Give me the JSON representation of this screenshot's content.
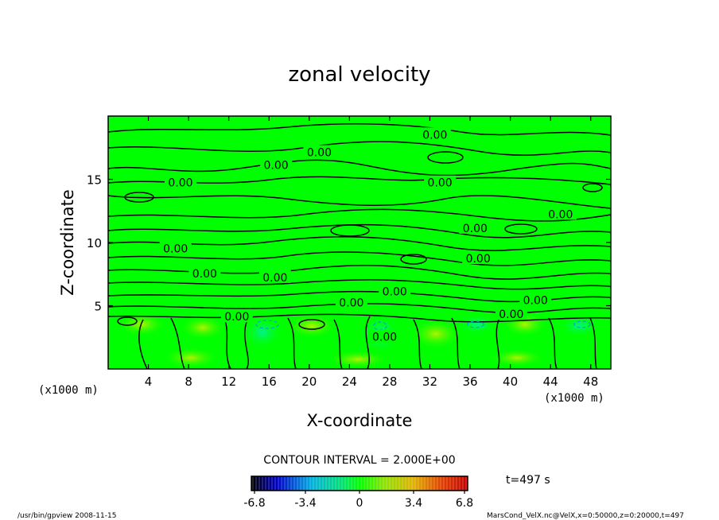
{
  "chart_data": {
    "type": "contour",
    "title": "zonal velocity",
    "xlabel": "X-coordinate",
    "ylabel": "Z-coordinate",
    "xunit": "(x1000 m)",
    "yunit": "(x1000 m)",
    "xlim": [
      0,
      50
    ],
    "ylim": [
      0,
      20
    ],
    "xticks": [
      "4",
      "8",
      "12",
      "16",
      "20",
      "24",
      "28",
      "32",
      "36",
      "40",
      "44",
      "48"
    ],
    "xtick_values": [
      4,
      8,
      12,
      16,
      20,
      24,
      28,
      32,
      36,
      40,
      44,
      48
    ],
    "yticks": [
      "5",
      "10",
      "15"
    ],
    "ytick_values": [
      5,
      10,
      15
    ],
    "contour_interval_text": "CONTOUR INTERVAL = 2.000E+00",
    "contour_label": "0.00",
    "contour_labels": [
      {
        "text": "0.00",
        "x": 32.5,
        "z": 18.6
      },
      {
        "text": "0.00",
        "x": 21.0,
        "z": 17.2
      },
      {
        "text": "0.00",
        "x": 16.7,
        "z": 16.2
      },
      {
        "text": "0.00",
        "x": 7.2,
        "z": 14.8
      },
      {
        "text": "0.00",
        "x": 33.0,
        "z": 14.8
      },
      {
        "text": "0.00",
        "x": 45.0,
        "z": 12.3
      },
      {
        "text": "0.00",
        "x": 36.5,
        "z": 11.2
      },
      {
        "text": "0.00",
        "x": 6.7,
        "z": 9.6
      },
      {
        "text": "0.00",
        "x": 36.8,
        "z": 8.8
      },
      {
        "text": "0.00",
        "x": 9.6,
        "z": 7.6
      },
      {
        "text": "0.00",
        "x": 16.6,
        "z": 7.3
      },
      {
        "text": "0.00",
        "x": 28.5,
        "z": 6.2
      },
      {
        "text": "0.00",
        "x": 24.2,
        "z": 5.3
      },
      {
        "text": "0.00",
        "x": 42.5,
        "z": 5.5
      },
      {
        "text": "0.00",
        "x": 12.8,
        "z": 4.2
      },
      {
        "text": "0.00",
        "x": 40.1,
        "z": 4.4
      },
      {
        "text": "0.00",
        "x": 27.5,
        "z": 2.6
      }
    ],
    "color_range": [
      -6.8,
      6.8
    ],
    "colorbar_ticks": [
      "-6.8",
      "-3.4",
      "0",
      "3.4",
      "6.8"
    ],
    "colorbar_tick_values": [
      -6.8,
      -3.4,
      0,
      3.4,
      6.8
    ],
    "background_color": "#00ff00",
    "time_label": "t=497 s"
  },
  "footer": {
    "left": "/usr/bin/gpview  2008-11-15",
    "right": "MarsCond_VelX.nc@VelX,x=0:50000,z=0:20000,t=497"
  }
}
